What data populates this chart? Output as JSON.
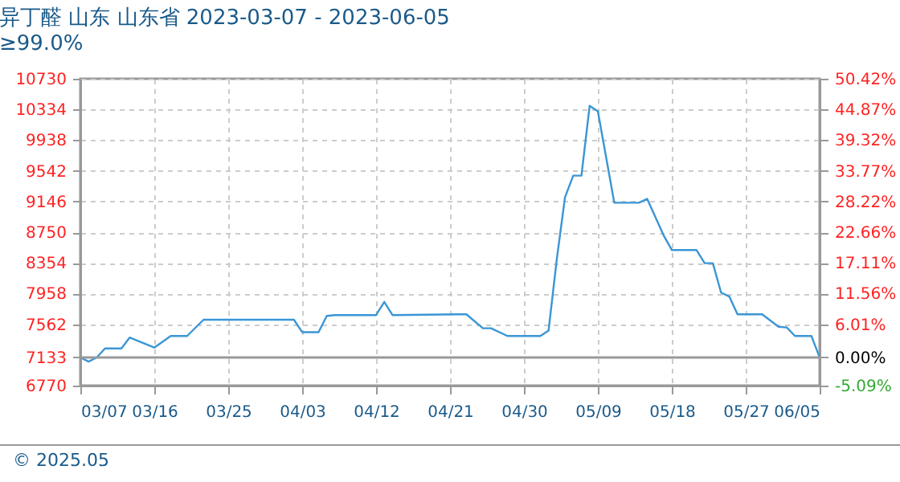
{
  "chart_data": {
    "type": "line",
    "title": "异丁醛 山东 山东省 2023-03-07 - 2023-06-05",
    "subtitle": "≥99.0%",
    "annotations": [
      "© 2025.05"
    ],
    "x": [
      "2023-03-07",
      "2023-03-08",
      "2023-03-09",
      "2023-03-10",
      "2023-03-12",
      "2023-03-13",
      "2023-03-16",
      "2023-03-18",
      "2023-03-20",
      "2023-03-22",
      "2023-04-02",
      "2023-04-03",
      "2023-04-05",
      "2023-04-06",
      "2023-04-07",
      "2023-04-12",
      "2023-04-13",
      "2023-04-14",
      "2023-04-22",
      "2023-04-23",
      "2023-04-25",
      "2023-04-26",
      "2023-04-28",
      "2023-05-02",
      "2023-05-03",
      "2023-05-04",
      "2023-05-05",
      "2023-05-06",
      "2023-05-07",
      "2023-05-08",
      "2023-05-09",
      "2023-05-11",
      "2023-05-14",
      "2023-05-15",
      "2023-05-17",
      "2023-05-18",
      "2023-05-21",
      "2023-05-22",
      "2023-05-23",
      "2023-05-24",
      "2023-05-25",
      "2023-05-26",
      "2023-05-29",
      "2023-05-31",
      "2023-06-01",
      "2023-06-02",
      "2023-06-04",
      "2023-06-05"
    ],
    "series": [
      {
        "color": "#3a96d6",
        "values": [
          7133,
          7080,
          7133,
          7250,
          7250,
          7390,
          7260,
          7410,
          7410,
          7620,
          7620,
          7460,
          7460,
          7670,
          7680,
          7680,
          7850,
          7680,
          7690,
          7690,
          7510,
          7510,
          7410,
          7410,
          7480,
          8400,
          9200,
          9480,
          9480,
          10380,
          10310,
          9130,
          9130,
          9180,
          8710,
          8520,
          8520,
          8350,
          8350,
          7970,
          7920,
          7690,
          7690,
          7530,
          7520,
          7410,
          7410,
          7133
        ]
      }
    ],
    "xlim": [
      "2023-03-07",
      "2023-06-05"
    ],
    "xticks": [
      {
        "value": "2023-03-07",
        "label": "03/07"
      },
      {
        "value": "2023-03-16",
        "label": "03/16"
      },
      {
        "value": "2023-03-25",
        "label": "03/25"
      },
      {
        "value": "2023-04-03",
        "label": "04/03"
      },
      {
        "value": "2023-04-12",
        "label": "04/12"
      },
      {
        "value": "2023-04-21",
        "label": "04/21"
      },
      {
        "value": "2023-04-30",
        "label": "04/30"
      },
      {
        "value": "2023-05-09",
        "label": "05/09"
      },
      {
        "value": "2023-05-18",
        "label": "05/18"
      },
      {
        "value": "2023-05-27",
        "label": "05/27"
      },
      {
        "value": "2023-06-05",
        "label": "06/05"
      }
    ],
    "ylim": [
      6770,
      10730
    ],
    "yticks": [
      6770,
      7133,
      7562,
      7958,
      8354,
      8750,
      9146,
      9542,
      9938,
      10334,
      10730
    ],
    "y2lim": [
      -5.09,
      50.42
    ],
    "y2ticks": [
      {
        "value": -5.09,
        "label": "-5.09%"
      },
      {
        "value": 0,
        "label": "0.00%"
      },
      {
        "value": 6.01,
        "label": "6.01%"
      },
      {
        "value": 11.56,
        "label": "11.56%"
      },
      {
        "value": 17.11,
        "label": "17.11%"
      },
      {
        "value": 22.66,
        "label": "22.66%"
      },
      {
        "value": 28.22,
        "label": "28.22%"
      },
      {
        "value": 33.77,
        "label": "33.77%"
      },
      {
        "value": 39.32,
        "label": "39.32%"
      },
      {
        "value": 44.87,
        "label": "44.87%"
      },
      {
        "value": 50.42,
        "label": "50.42%"
      }
    ],
    "ref_lines": [
      {
        "axis": "y2",
        "value": 0,
        "color": "#999999",
        "line_style": "solid"
      }
    ],
    "grid": true
  }
}
